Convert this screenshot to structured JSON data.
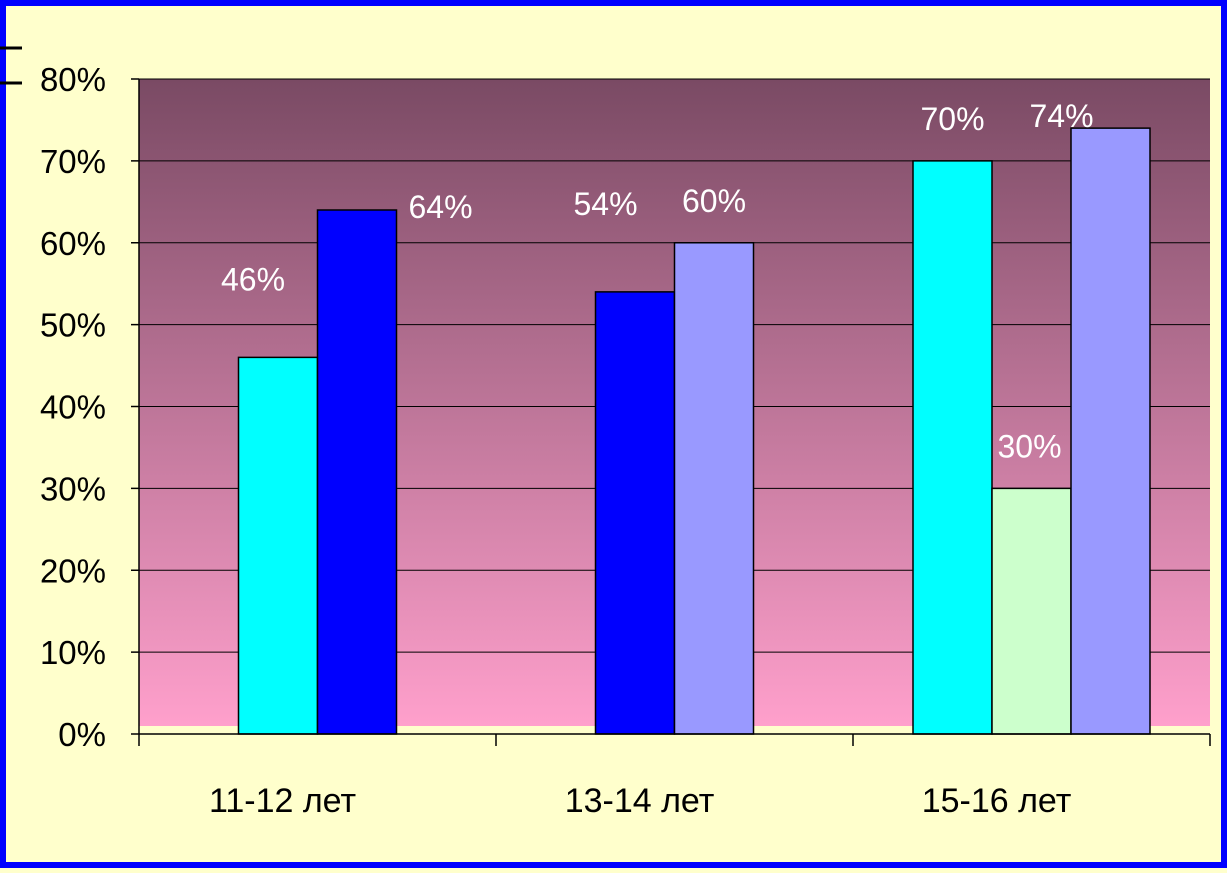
{
  "colors": {
    "page_background": "#ffffcc",
    "frame": "#0000ff",
    "plot_top": "#7a4a64",
    "plot_bottom": "#ffa0cc",
    "gridline": "#000000",
    "data_label": "#ffffff"
  },
  "chart_data": {
    "type": "bar",
    "title": "",
    "xlabel": "",
    "ylabel": "",
    "ylim": [
      0,
      80
    ],
    "y_tick_step": 10,
    "y_tick_labels": [
      "0%",
      "10%",
      "20%",
      "30%",
      "40%",
      "50%",
      "60%",
      "70%",
      "80%"
    ],
    "grid": true,
    "legend": "none",
    "categories": [
      "11-12 лет",
      "13-14 лет",
      "15-16 лет"
    ],
    "groups": [
      {
        "category": "11-12 лет",
        "bars": [
          {
            "value": 46,
            "label": "46%",
            "color": "#00ffff"
          },
          {
            "value": 64,
            "label": "64%",
            "color": "#0000ff"
          }
        ]
      },
      {
        "category": "13-14 лет",
        "bars": [
          {
            "value": 54,
            "label": "54%",
            "color": "#0000ff"
          },
          {
            "value": 60,
            "label": "60%",
            "color": "#9999ff"
          }
        ]
      },
      {
        "category": "15-16 лет",
        "bars": [
          {
            "value": 70,
            "label": "70%",
            "color": "#00ffff"
          },
          {
            "value": 30,
            "label": "30%",
            "color": "#ccffcc"
          },
          {
            "value": 74,
            "label": "74%",
            "color": "#9999ff"
          }
        ]
      }
    ]
  }
}
